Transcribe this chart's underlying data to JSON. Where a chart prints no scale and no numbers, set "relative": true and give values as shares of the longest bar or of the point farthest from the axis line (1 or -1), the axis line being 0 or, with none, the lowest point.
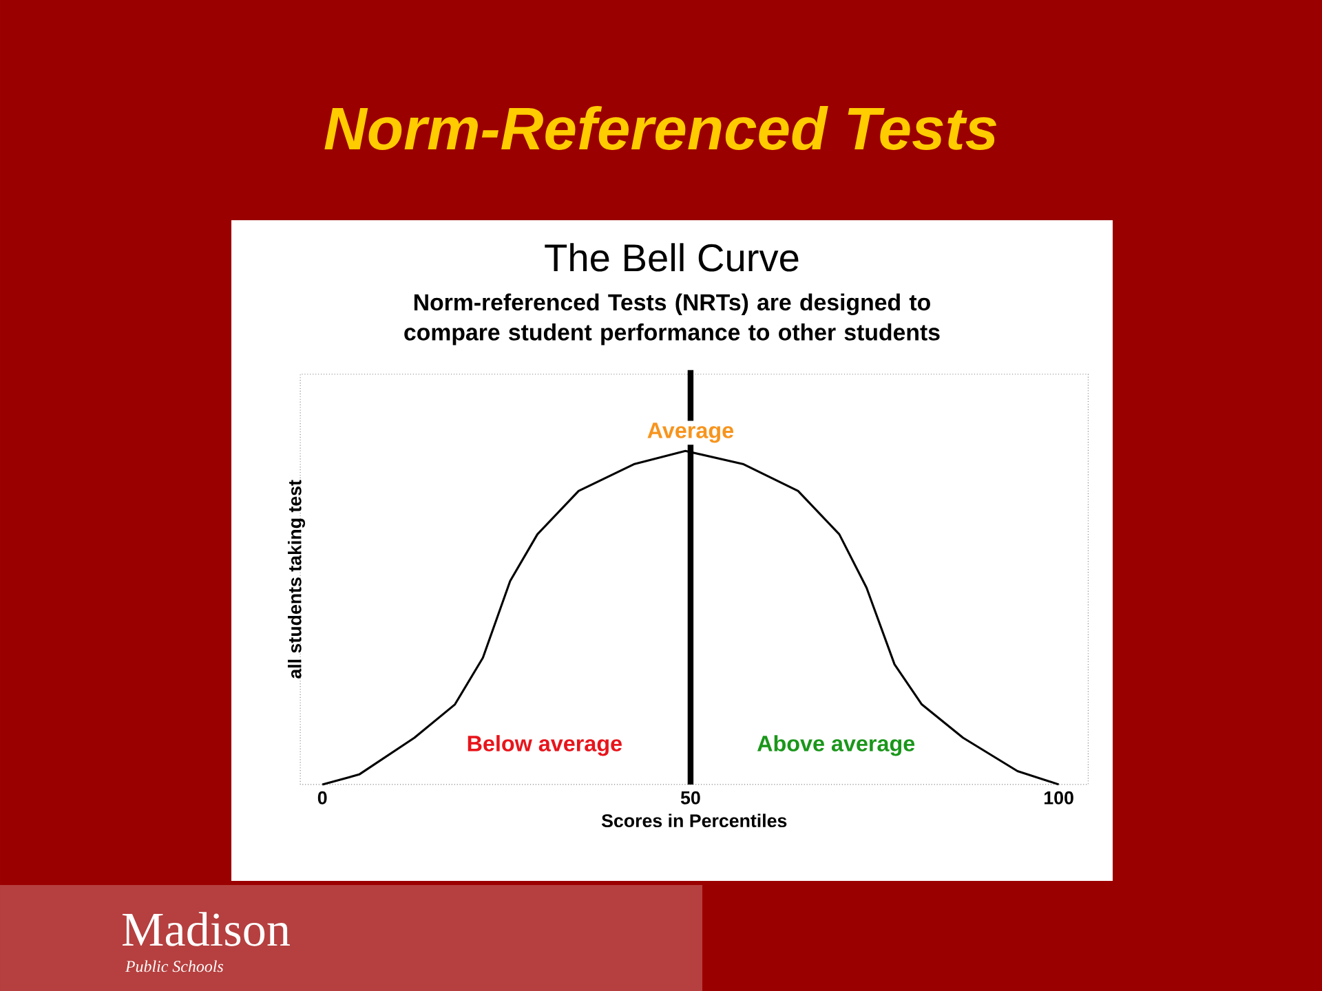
{
  "chart_data": {
    "type": "line",
    "title": "Norm-Referenced Tests",
    "subtitle": "The Bell Curve",
    "xlabel": "Scores in Percentiles",
    "ylabel": "all students taking test",
    "relative": true,
    "x": [
      0,
      5,
      12.5,
      18,
      21.8,
      25.5,
      29.2,
      34.8,
      42.3,
      49.3,
      57.2,
      64.6,
      70.2,
      73.9,
      77.7,
      81.4,
      87,
      94.4,
      100
    ],
    "series": [
      {
        "color": "#000000",
        "values": [
          0,
          0.03,
          0.14,
          0.24,
          0.38,
          0.61,
          0.75,
          0.88,
          0.96,
          1.0,
          0.96,
          0.88,
          0.75,
          0.59,
          0.36,
          0.24,
          0.14,
          0.04,
          0
        ]
      }
    ],
    "xlim": [
      -3,
      104
    ],
    "xticks": [
      0,
      50,
      100
    ],
    "ref_lines": [
      {
        "axis": "x",
        "value": 50,
        "label": "Average",
        "color": "#000000"
      }
    ],
    "annotations": [
      "Norm-referenced Tests (NRTs) are designed to compare student performance to other students",
      "Below average",
      "Above average",
      "Madison",
      "Public Schools"
    ],
    "grid": false
  }
}
